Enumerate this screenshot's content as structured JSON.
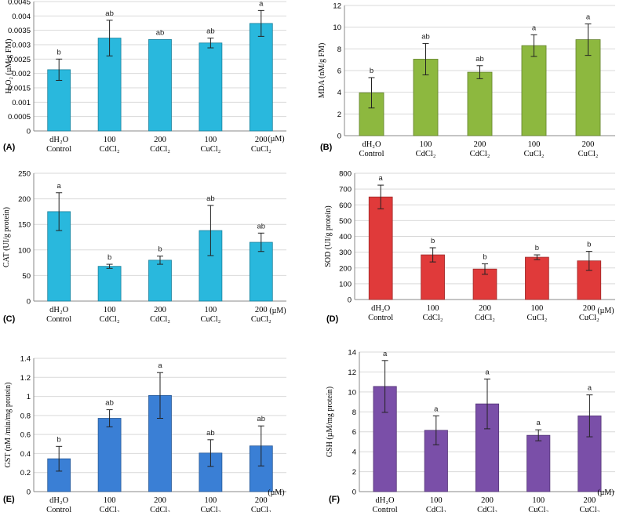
{
  "chart_data": [
    {
      "type": "bar",
      "panel_label": "(A)",
      "ylabel": "H₂O₂ (µM/g FM)",
      "ylim": [
        0,
        0.0045
      ],
      "yticks": [
        "0",
        "0.0005",
        "0.001",
        "0.0015",
        "0.002",
        "0.0025",
        "0.003",
        "0.0035",
        "0.004",
        "0.0045"
      ],
      "unit_label": "(µM)",
      "categories": [
        [
          "dH₂O",
          "Control"
        ],
        [
          "100",
          "CdCl₂"
        ],
        [
          "200",
          "CdCl₂"
        ],
        [
          "100",
          "CuCl₂"
        ],
        [
          "200",
          "CuCl₂"
        ]
      ],
      "values": [
        0.00213,
        0.00323,
        0.00318,
        0.00306,
        0.00374
      ],
      "errors": [
        0.00037,
        0.00062,
        0.0,
        0.00017,
        0.00045
      ],
      "letters": [
        "b",
        "ab",
        "ab",
        "ab",
        "a"
      ],
      "color": "#29B8DD"
    },
    {
      "type": "bar",
      "panel_label": "(B)",
      "ylabel": "MDA (nM/g FM)",
      "ylim": [
        0,
        12
      ],
      "yticks": [
        "0",
        "2",
        "4",
        "6",
        "8",
        "10",
        "12"
      ],
      "unit_label": "",
      "categories": [
        [
          "dH₂O",
          "Control"
        ],
        [
          "100",
          "CdCl₂"
        ],
        [
          "200",
          "CdCl₂"
        ],
        [
          "100",
          "CuCl₂"
        ],
        [
          "200",
          "CuCl₂"
        ]
      ],
      "values": [
        3.95,
        7.05,
        5.85,
        8.3,
        8.85
      ],
      "errors": [
        1.4,
        1.45,
        0.6,
        1.0,
        1.45
      ],
      "letters": [
        "b",
        "ab",
        "ab",
        "a",
        "a"
      ],
      "color": "#8DB83F"
    },
    {
      "type": "bar",
      "panel_label": "(C)",
      "ylabel": "CAT (UI/g protein)",
      "ylim": [
        0,
        250
      ],
      "yticks": [
        "0",
        "50",
        "100",
        "150",
        "200",
        "250"
      ],
      "unit_label": "(µM)",
      "categories": [
        [
          "dH₂O",
          "Control"
        ],
        [
          "100",
          "CdCl₂"
        ],
        [
          "200",
          "CdCl₂"
        ],
        [
          "100",
          "CuCl₂"
        ],
        [
          "200",
          "CuCl₂"
        ]
      ],
      "values": [
        175,
        68,
        80,
        138,
        115
      ],
      "errors": [
        37,
        4,
        8,
        49,
        18
      ],
      "letters": [
        "a",
        "b",
        "b",
        "ab",
        "ab"
      ],
      "color": "#29B8DD"
    },
    {
      "type": "bar",
      "panel_label": "(D)",
      "ylabel": "SOD (UI/g protein)",
      "ylim": [
        0,
        800
      ],
      "yticks": [
        "0",
        "100",
        "200",
        "300",
        "400",
        "500",
        "600",
        "700",
        "800"
      ],
      "unit_label": "(µM)",
      "categories": [
        [
          "dH₂O",
          "Control"
        ],
        [
          "100",
          "CdCl₂"
        ],
        [
          "200",
          "CdCl₂"
        ],
        [
          "100",
          "CuCl₂"
        ],
        [
          "200",
          "CuCl₂"
        ]
      ],
      "values": [
        650,
        283,
        193,
        268,
        245
      ],
      "errors": [
        75,
        45,
        33,
        15,
        60
      ],
      "letters": [
        "a",
        "b",
        "b",
        "b",
        "b"
      ],
      "color": "#E03A3A"
    },
    {
      "type": "bar",
      "panel_label": "(E)",
      "ylabel": "GST (nM /min/mg protein)",
      "ylim": [
        0,
        1.4
      ],
      "yticks": [
        "0",
        "0.2",
        "0.4",
        "0.6",
        "0.8",
        "1",
        "1.2",
        "1.4"
      ],
      "unit_label": "(µM)",
      "categories": [
        [
          "dH₂O",
          "Control"
        ],
        [
          "100",
          "CdCl₂"
        ],
        [
          "200",
          "CdCl₂"
        ],
        [
          "100",
          "CuCl₂"
        ],
        [
          "200",
          "CuCl₂"
        ]
      ],
      "values": [
        0.345,
        0.77,
        1.01,
        0.405,
        0.48
      ],
      "errors": [
        0.13,
        0.09,
        0.24,
        0.14,
        0.21
      ],
      "letters": [
        "b",
        "ab",
        "a",
        "ab",
        "ab"
      ],
      "color": "#3A7FD5"
    },
    {
      "type": "bar",
      "panel_label": "(F)",
      "ylabel": "GSH (µM/mg protein)",
      "ylim": [
        0,
        14
      ],
      "yticks": [
        "0",
        "2",
        "4",
        "6",
        "8",
        "10",
        "12",
        "14"
      ],
      "unit_label": "(µM)",
      "categories": [
        [
          "dH₂O",
          "Control"
        ],
        [
          "100",
          "CdCl₂"
        ],
        [
          "200",
          "CdCl₂"
        ],
        [
          "100",
          "CuCl₂"
        ],
        [
          "200",
          "CuCl₂"
        ]
      ],
      "values": [
        10.55,
        6.15,
        8.8,
        5.65,
        7.6
      ],
      "errors": [
        2.6,
        1.45,
        2.5,
        0.55,
        2.1
      ],
      "letters": [
        "a",
        "a",
        "a",
        "a",
        "a"
      ],
      "color": "#7A4FA8"
    }
  ]
}
